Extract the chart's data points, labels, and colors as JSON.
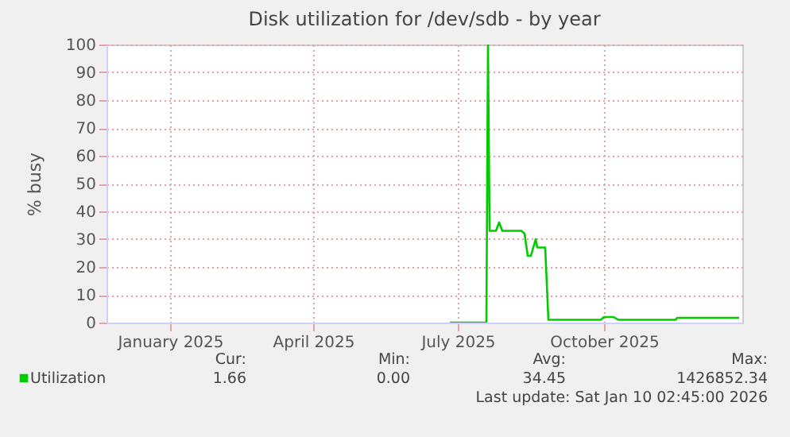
{
  "chart_data": {
    "type": "line",
    "title": "Disk utilization for /dev/sdb - by year",
    "ylabel": "% busy",
    "x": [
      "2025-07-10",
      "2025-08-02",
      "2025-08-03",
      "2025-08-04",
      "2025-08-08",
      "2025-08-10",
      "2025-08-12",
      "2025-08-24",
      "2025-08-26",
      "2025-08-28",
      "2025-08-30",
      "2025-09-01",
      "2025-09-02",
      "2025-09-03",
      "2025-09-08",
      "2025-09-10",
      "2025-10-13",
      "2025-10-15",
      "2025-10-21",
      "2025-10-24",
      "2025-11-29",
      "2025-11-30",
      "2026-01-08"
    ],
    "series": [
      {
        "name": "Utilization",
        "color": "#00cc00",
        "values": [
          0,
          0,
          100,
          33,
          33,
          36,
          33,
          33,
          32,
          24,
          24,
          28,
          30,
          27,
          27,
          1,
          1,
          2,
          2,
          1,
          1,
          1.7,
          1.7
        ]
      }
    ],
    "xlim": [
      "2024-12-06",
      "2026-01-10"
    ],
    "xticks": [
      {
        "value": "2025-01-15",
        "label": "January 2025"
      },
      {
        "value": "2025-04-15",
        "label": "April 2025"
      },
      {
        "value": "2025-07-15",
        "label": "July 2025"
      },
      {
        "value": "2025-10-15",
        "label": "October 2025"
      }
    ],
    "ylim": [
      0,
      100
    ],
    "yticks": [
      0,
      10,
      20,
      30,
      40,
      50,
      60,
      70,
      80,
      90,
      100
    ],
    "grid": true,
    "legend": "bottom",
    "marker": "none",
    "line_style": "solid",
    "annotations": [
      "Cur:",
      "Min:",
      "Avg:",
      "Max:",
      "1.66",
      "0.00",
      "34.45",
      "1426852.34",
      "Last update: Sat Jan 10 02:45:00 2026"
    ]
  }
}
